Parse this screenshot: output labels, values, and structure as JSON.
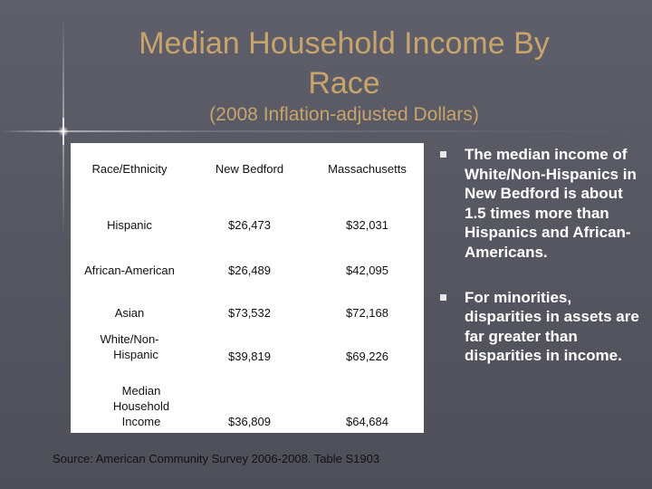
{
  "slide": {
    "title_line1": "Median Household Income By",
    "title_line2": "Race",
    "subtitle": "(2008 Inflation-adjusted Dollars)"
  },
  "table": {
    "headers": [
      "Race/Ethnicity",
      "New Bedford",
      "Massachusetts"
    ],
    "rows": [
      {
        "race": "Hispanic",
        "new_bedford": "$26,473",
        "massachusetts": "$32,031"
      },
      {
        "race": "African-American",
        "new_bedford": "$26,489",
        "massachusetts": "$42,095"
      },
      {
        "race": "Asian",
        "new_bedford": "$73,532",
        "massachusetts": "$72,168"
      },
      {
        "race_line1": "White/Non-",
        "race_line2": "Hispanic",
        "new_bedford": "$39,819",
        "massachusetts": "$69,226"
      },
      {
        "race_line1": "Median",
        "race_line2": "Household",
        "race_line3": "Income",
        "new_bedford": "$36,809",
        "massachusetts": "$64,684"
      }
    ]
  },
  "source": "Source:  American Community Survey 2006-2008. Table S1903",
  "bullets": [
    "The median income of White/Non-Hispanics in New Bedford is about 1.5 times more than Hispanics and African-Americans.",
    "For minorities, disparities in assets are far greater than disparities in income."
  ]
}
